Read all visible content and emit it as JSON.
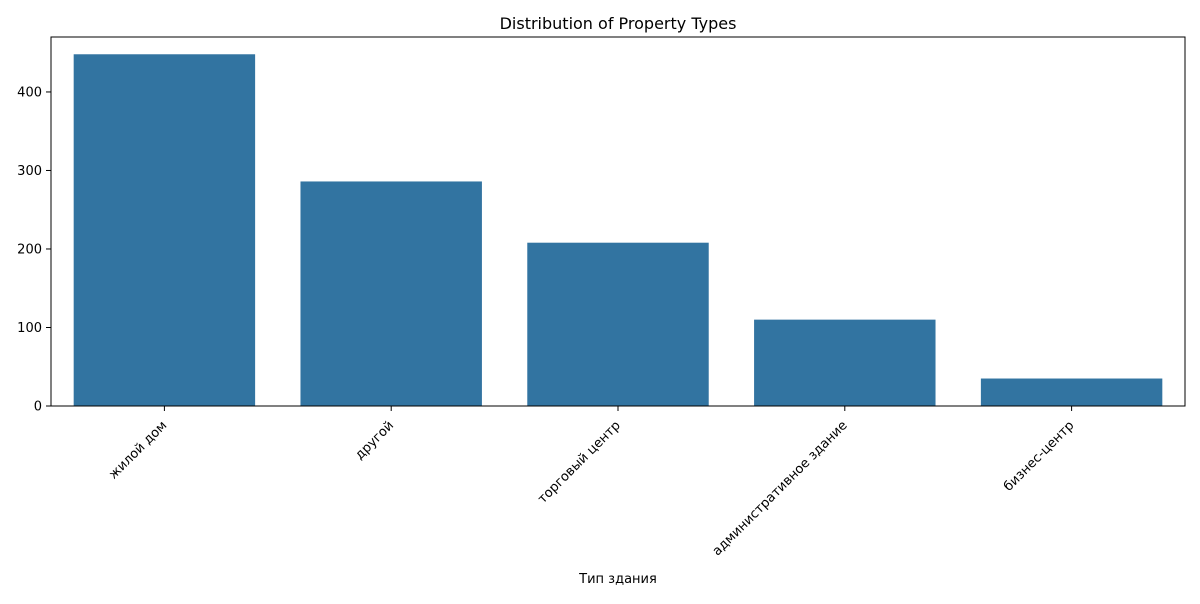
{
  "chart_data": {
    "type": "bar",
    "title": "Distribution of Property Types",
    "xlabel": "Тип здания",
    "ylabel": "",
    "categories": [
      "жилой дом",
      "другой",
      "торговый центр",
      "административное здание",
      "бизнес-центр"
    ],
    "values": [
      448,
      286,
      208,
      110,
      35
    ],
    "ylim": [
      0,
      470
    ],
    "yticks": [
      0,
      100,
      200,
      300,
      400
    ],
    "grid": false,
    "legend": "none",
    "colors": {
      "bar": "#3274a1",
      "axis": "#000000",
      "background": "#ffffff"
    }
  }
}
